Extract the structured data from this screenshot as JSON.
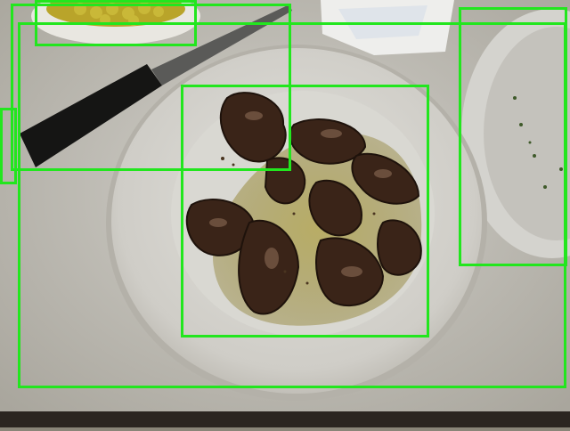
{
  "image": {
    "bounding_boxes": [
      {
        "id": "box-0"
      },
      {
        "id": "box-1"
      },
      {
        "id": "box-2"
      },
      {
        "id": "box-3"
      },
      {
        "id": "box-4"
      },
      {
        "id": "box-5"
      }
    ],
    "colors": {
      "box_stroke": "#22e61e",
      "tablecloth": "#c9c7c0",
      "plate": "#d6d4cf",
      "food": "#3a2418",
      "oil": "#9a8a3a"
    }
  }
}
